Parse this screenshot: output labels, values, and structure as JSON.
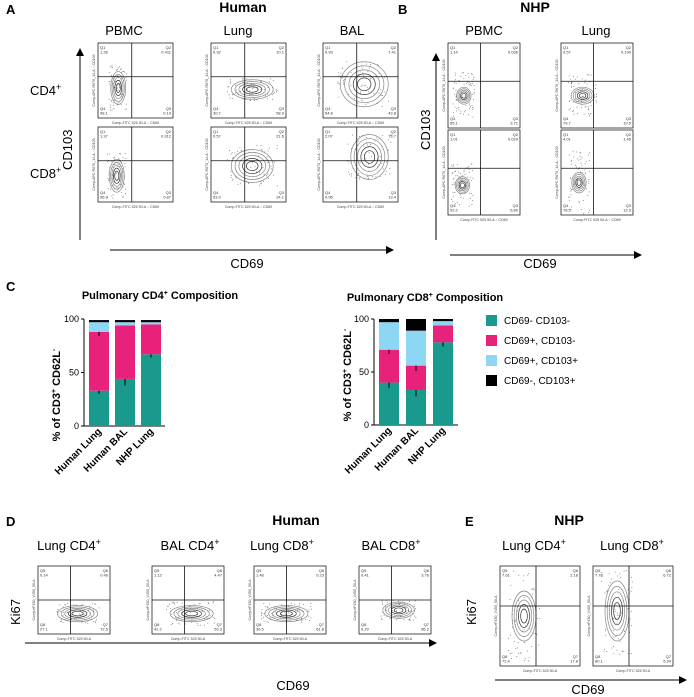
{
  "panel_letters": {
    "A": "A",
    "B": "B",
    "C": "C",
    "D": "D",
    "E": "E"
  },
  "headers": {
    "A": "Human",
    "B": "NHP",
    "D": "Human",
    "E": "NHP"
  },
  "panelA": {
    "columns": [
      "PBMC",
      "Lung",
      "BAL"
    ],
    "rows": [
      {
        "main": "CD4",
        "sup": "+"
      },
      {
        "main": "CD8",
        "sup": "+"
      }
    ],
    "yaxis": "CD103",
    "xaxis": "CD69",
    "plot_xlabel": "Comp-FITC 525 50-A :: CD69",
    "plot_ylabel": "Comp-APC R670_14-A :: CD103",
    "quadrants": [
      [
        [
          "Q1",
          "1.28"
        ],
        [
          "Q2",
          "0.411"
        ],
        [
          "Q3",
          "0.19"
        ],
        [
          "Q4",
          "98.1"
        ]
      ],
      [
        [
          "Q1",
          "0.32"
        ],
        [
          "Q2",
          "10.1"
        ],
        [
          "Q3",
          "58.9"
        ],
        [
          "Q4",
          "30.7"
        ]
      ],
      [
        [
          "Q1",
          "0.93"
        ],
        [
          "Q2",
          "7.41"
        ],
        [
          "Q3",
          "43.8"
        ],
        [
          "Q4",
          "54.8"
        ]
      ],
      [
        [
          "Q1",
          "1.37"
        ],
        [
          "Q2",
          "0.312"
        ],
        [
          "Q3",
          "0.87"
        ],
        [
          "Q4",
          "96.9"
        ]
      ],
      [
        [
          "Q1",
          "0.57"
        ],
        [
          "Q2",
          "21.6"
        ],
        [
          "Q3",
          "24.1"
        ],
        [
          "Q4",
          "53.9"
        ]
      ],
      [
        [
          "Q1",
          "2.07"
        ],
        [
          "Q2",
          "73.7"
        ],
        [
          "Q3",
          "13.4"
        ],
        [
          "Q4",
          "9.95"
        ]
      ]
    ]
  },
  "panelB": {
    "columns": [
      "PBMC",
      "Lung"
    ],
    "yaxis": "CD103",
    "xaxis": "CD69",
    "plot_xlabel": "Comp-FITC 525 50-A :: CD69",
    "plot_ylabel": "Comp-APC R670_14-A :: CD103",
    "quadrants": [
      [
        [
          "Q1",
          "1.14"
        ],
        [
          "Q2",
          "0.036"
        ],
        [
          "Q3",
          "3.71"
        ],
        [
          "Q4",
          "95.1"
        ]
      ],
      [
        [
          "Q1",
          "0.57"
        ],
        [
          "Q2",
          "0.199"
        ],
        [
          "Q3",
          "19.5"
        ],
        [
          "Q4",
          "79.7"
        ]
      ],
      [
        [
          "Q1",
          "1.01"
        ],
        [
          "Q2",
          "0.029"
        ],
        [
          "Q3",
          "6.80"
        ],
        [
          "Q4",
          "92.2"
        ]
      ],
      [
        [
          "Q1",
          "4.01"
        ],
        [
          "Q2",
          "1.45"
        ],
        [
          "Q3",
          "12.0"
        ],
        [
          "Q4",
          "78.5"
        ]
      ]
    ]
  },
  "panelD": {
    "columns": [
      {
        "main": "Lung CD4",
        "sup": "+"
      },
      {
        "main": "BAL CD4",
        "sup": "+"
      },
      {
        "main": "Lung CD8",
        "sup": "+"
      },
      {
        "main": "BAL CD8",
        "sup": "+"
      }
    ],
    "yaxis": "Ki67",
    "xaxis": "CD69",
    "plot_xlabel": "Comp-FITC 525 50-A",
    "plot_ylabel": "Comp-eF450_V450_50-A",
    "quadrants": [
      [
        [
          "Q5",
          "0.14"
        ],
        [
          "Q6",
          "0.46"
        ],
        [
          "Q7",
          "72.5"
        ],
        [
          "Q8",
          "27.1"
        ]
      ],
      [
        [
          "Q5",
          "1.12"
        ],
        [
          "Q6",
          "4.47"
        ],
        [
          "Q7",
          "53.3"
        ],
        [
          "Q8",
          "42.2"
        ]
      ],
      [
        [
          "Q5",
          "1.48"
        ],
        [
          "Q6",
          "0.23"
        ],
        [
          "Q7",
          "61.8"
        ],
        [
          "Q8",
          "36.5"
        ]
      ],
      [
        [
          "Q5",
          "0.41"
        ],
        [
          "Q6",
          "3.76"
        ],
        [
          "Q7",
          "85.2"
        ],
        [
          "Q8",
          "9.29"
        ]
      ]
    ]
  },
  "panelE": {
    "columns": [
      {
        "main": "Lung CD4",
        "sup": "+"
      },
      {
        "main": "Lung CD8",
        "sup": "+"
      }
    ],
    "yaxis": "Ki67",
    "xaxis": "CD69",
    "plot_xlabel": "Comp-FITC 525 50-A",
    "plot_ylabel": "Comp-eF450_V450_50-A",
    "quadrants": [
      [
        [
          "Q5",
          "7.61"
        ],
        [
          "Q6",
          "2.18"
        ],
        [
          "Q7",
          "17.8"
        ],
        [
          "Q8",
          "72.4"
        ]
      ],
      [
        [
          "Q5",
          "7.78"
        ],
        [
          "Q6",
          "6.72"
        ],
        [
          "Q7",
          "5.34"
        ],
        [
          "Q8",
          "80.1"
        ]
      ]
    ]
  },
  "chart_data": [
    {
      "type": "bar",
      "stacked": true,
      "title_main": "Pulmonary CD4",
      "title_sup": "+",
      "title_tail": " Composition",
      "ylabel_parts": [
        "% of CD3",
        "+",
        " CD62L",
        "-"
      ],
      "ylim": [
        0,
        100
      ],
      "yticks": [
        0,
        50,
        100
      ],
      "categories": [
        "Human Lung",
        "Human BAL",
        "NHP Lung"
      ],
      "series": [
        {
          "name": "CD69- CD103-",
          "values": [
            33,
            44,
            67
          ],
          "errors": [
            3,
            6,
            3
          ]
        },
        {
          "name": "CD69+, CD103-",
          "values": [
            55,
            50,
            28
          ],
          "errors": [
            4,
            0,
            0
          ]
        },
        {
          "name": "CD69+, CD103+",
          "values": [
            9,
            3,
            2
          ],
          "errors": [
            0,
            0,
            0
          ]
        },
        {
          "name": "CD69-, CD103+",
          "values": [
            2,
            2,
            2
          ],
          "errors": [
            0,
            0,
            0
          ]
        }
      ]
    },
    {
      "type": "bar",
      "stacked": true,
      "title_main": "Pulmonary CD8",
      "title_sup": "+",
      "title_tail": " Composition",
      "ylabel_parts": [
        "% of CD3",
        "+",
        " CD62L",
        "-"
      ],
      "ylim": [
        0,
        100
      ],
      "yticks": [
        0,
        50,
        100
      ],
      "categories": [
        "Human Lung",
        "Human BAL",
        "NHP Lung"
      ],
      "series": [
        {
          "name": "CD69- CD103-",
          "values": [
            40,
            33,
            78
          ],
          "errors": [
            5,
            6,
            4
          ]
        },
        {
          "name": "CD69+, CD103-",
          "values": [
            31,
            23,
            16
          ],
          "errors": [
            4,
            5,
            0
          ]
        },
        {
          "name": "CD69+, CD103+",
          "values": [
            26,
            33,
            4
          ],
          "errors": [
            0,
            0,
            0
          ]
        },
        {
          "name": "CD69-, CD103+",
          "values": [
            3,
            11,
            2
          ],
          "errors": [
            0,
            0,
            0
          ]
        }
      ]
    }
  ],
  "legend": [
    {
      "label": "CD69- CD103-",
      "color": "#1a9a8c"
    },
    {
      "label": "CD69+, CD103-",
      "color": "#e8227a"
    },
    {
      "label": "CD69+, CD103+",
      "color": "#8dd6f4"
    },
    {
      "label": "CD69-, CD103+",
      "color": "#000000"
    }
  ],
  "colors": {
    "teal": "#1a9a8c",
    "magenta": "#e8227a",
    "lightblue": "#8dd6f4",
    "black": "#000000"
  }
}
